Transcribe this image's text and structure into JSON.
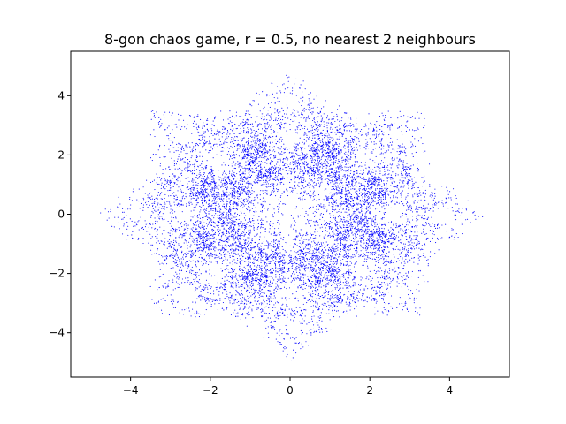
{
  "chart_data": {
    "type": "scatter",
    "title": "8-gon chaos game, r = 0.5, no nearest 2 neighbours",
    "xlabel": "",
    "ylabel": "",
    "xlim": [
      -5.5,
      5.5
    ],
    "ylim": [
      -5.5,
      5.5
    ],
    "x_ticks": [
      -4,
      -2,
      0,
      2,
      4
    ],
    "y_ticks": [
      -4,
      -2,
      0,
      2,
      4
    ],
    "x_tick_labels": [
      "−4",
      "−2",
      "0",
      "2",
      "4"
    ],
    "y_tick_labels": [
      "−4",
      "−2",
      "0",
      "2",
      "4"
    ],
    "grid": false,
    "legend": "none",
    "series": [
      {
        "marker": "dot",
        "color": "#0000ff",
        "vertices": [
          [
            5,
            0
          ],
          [
            3.536,
            3.536
          ],
          [
            0,
            5
          ],
          [
            -3.536,
            3.536
          ],
          [
            -5,
            0
          ],
          [
            -3.536,
            -3.536
          ],
          [
            0,
            -5
          ],
          [
            3.536,
            -3.536
          ]
        ],
        "ratio": 0.5,
        "excluded_vertex_offsets": [
          -1,
          1
        ],
        "point_count": 10000
      }
    ]
  }
}
